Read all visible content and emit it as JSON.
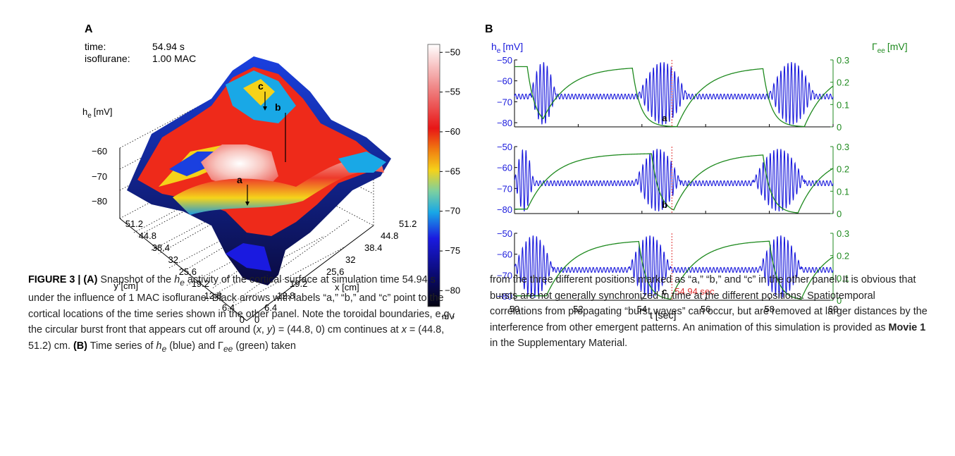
{
  "panel_a": {
    "label": "A",
    "time_label": "time:",
    "time_value": "54.94 s",
    "iso_label": "isoflurane:",
    "iso_value": "1.00 MAC",
    "z_axis_label": "h",
    "z_axis_sub": "e",
    "z_axis_unit": "[mV]",
    "z_ticks": [
      "−60",
      "−70",
      "−80"
    ],
    "y_axis_label": "y [cm]",
    "x_axis_label": "x [cm]",
    "y_ticks": [
      "51.2",
      "44.8",
      "38.4",
      "32",
      "25.6",
      "19.2",
      "12.8",
      "6.4",
      "0"
    ],
    "x_ticks": [
      "0",
      "6.4",
      "12.8",
      "19.2",
      "25.6",
      "32",
      "38.4",
      "44.8",
      "51.2"
    ],
    "markers": [
      "a",
      "b",
      "c"
    ],
    "colorbar": {
      "ticks": [
        "−50",
        "−55",
        "−60",
        "−65",
        "−70",
        "−75",
        "−80"
      ],
      "unit": "mV",
      "range": [
        -82,
        -49
      ]
    }
  },
  "panel_b": {
    "label": "B",
    "left_axis_label": "h",
    "left_axis_sub": "e",
    "left_axis_unit": "[mV]",
    "right_axis_label": "Γ",
    "right_axis_sub": "ee",
    "right_axis_unit": "[mV]",
    "x_axis_label": "t [sec]",
    "time_marker_label": "54.94 sec",
    "colors": {
      "he": "#1a1adc",
      "gamma": "#1f8a1f",
      "marker": "#e03030"
    }
  },
  "chart_data": {
    "type": "line",
    "x_range": [
      50,
      60
    ],
    "x_ticks": [
      "50",
      "52",
      "54",
      "56",
      "58",
      "60"
    ],
    "left_ylim": [
      -82,
      -50
    ],
    "left_ticks": [
      "−50",
      "−60",
      "−70",
      "−80"
    ],
    "right_ylim": [
      0,
      0.3
    ],
    "right_ticks": [
      "0.3",
      "0.2",
      "0.1",
      "0"
    ],
    "marker_time": 54.94,
    "series": [
      {
        "label": "a",
        "he_bursts": [
          [
            50.5,
            51.3
          ],
          [
            53.9,
            55.4
          ],
          [
            58.0,
            59.4
          ]
        ],
        "gamma_rises": [
          50.9,
          55.1,
          59.1
        ],
        "gamma_falls": [
          50.4,
          53.7,
          57.8
        ]
      },
      {
        "label": "b",
        "he_bursts": [
          [
            50.0,
            50.6
          ],
          [
            53.8,
            55.2
          ],
          [
            57.5,
            59.1
          ]
        ],
        "gamma_rises": [
          50.4,
          55.0,
          58.9
        ],
        "gamma_falls": [
          54.3,
          57.8
        ]
      },
      {
        "label": "c",
        "he_bursts": [
          [
            50.0,
            51.2
          ],
          [
            53.6,
            54.9
          ],
          [
            57.7,
            59.0
          ]
        ],
        "gamma_rises": [
          51.0,
          54.9,
          59.0
        ],
        "gamma_falls": [
          53.9,
          58.0
        ]
      }
    ]
  },
  "caption": {
    "left": [
      {
        "t": "FIGURE 3 | (A)",
        "s": "label"
      },
      {
        "t": " Snapshot of the "
      },
      {
        "t": "h",
        "s": "em"
      },
      {
        "t": "e",
        "s": "sub"
      },
      {
        "t": " activity of the cortical surface at simulation time 54.94 s under the influence of 1 MAC isoflurane. Black arrows with labels “a,” “b,” and “c” point to the cortical locations of the time series shown in the other panel. Note the toroidal boundaries, e.g., the circular burst front that appears cut off around ("
      },
      {
        "t": "x",
        "s": "em"
      },
      {
        "t": ", "
      },
      {
        "t": "y",
        "s": "em"
      },
      {
        "t": ") = (44.8,  0) cm continues at "
      },
      {
        "t": "x",
        "s": "em"
      },
      {
        "t": " = (44.8,  51.2) cm. "
      },
      {
        "t": "(B)",
        "s": "label"
      },
      {
        "t": " Time series of "
      },
      {
        "t": "h",
        "s": "em"
      },
      {
        "t": "e",
        "s": "sub"
      },
      {
        "t": " (blue) and Γ"
      },
      {
        "t": "ee",
        "s": "sub"
      },
      {
        "t": " (green) taken"
      }
    ],
    "right": [
      {
        "t": "from the three different positions marked as “a,” “b,” and “c” in the other panel. It is obvious that bursts are not generally synchronized in time at the different positions. Spatiotemporal correlations from propagating “burst waves” can occur, but are removed at larger distances by the interference from other emergent patterns. An animation of this simulation is provided as "
      },
      {
        "t": "Movie 1",
        "s": "bold"
      },
      {
        "t": " in the Supplementary Material."
      }
    ]
  }
}
